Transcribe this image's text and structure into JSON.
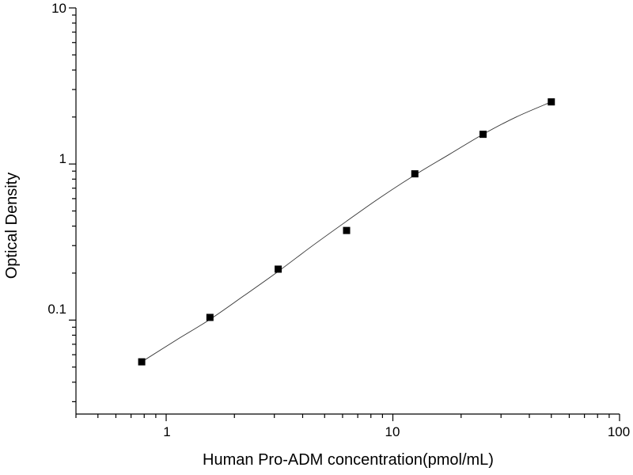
{
  "chart_data": {
    "type": "scatter",
    "title": "",
    "xlabel": "Human Pro-ADM concentration(pmol/mL)",
    "ylabel": "Optical Density",
    "xscale": "log",
    "yscale": "log",
    "xlim": [
      0.4,
      100
    ],
    "ylim": [
      0.025,
      10
    ],
    "x_tick_labels": [
      "1",
      "10",
      "100"
    ],
    "y_tick_labels": [
      "0.1",
      "1",
      "10"
    ],
    "grid": false,
    "legend": "none",
    "marker": "square",
    "marker_color": "#000000",
    "curve_color": "#333333",
    "points": [
      {
        "x": 0.78,
        "y": 0.054
      },
      {
        "x": 1.56,
        "y": 0.104
      },
      {
        "x": 3.12,
        "y": 0.212
      },
      {
        "x": 6.25,
        "y": 0.375
      },
      {
        "x": 12.5,
        "y": 0.865
      },
      {
        "x": 25,
        "y": 1.55
      },
      {
        "x": 50,
        "y": 2.5
      }
    ],
    "fit_curve": {
      "type": "four-parameter-logistic",
      "x": [
        0.78,
        1.1,
        1.56,
        2.2,
        3.12,
        4.4,
        6.25,
        8.8,
        12.5,
        17.7,
        25,
        35,
        50
      ],
      "y": [
        0.054,
        0.074,
        0.101,
        0.143,
        0.205,
        0.298,
        0.43,
        0.61,
        0.85,
        1.15,
        1.55,
        2.0,
        2.5
      ]
    }
  }
}
